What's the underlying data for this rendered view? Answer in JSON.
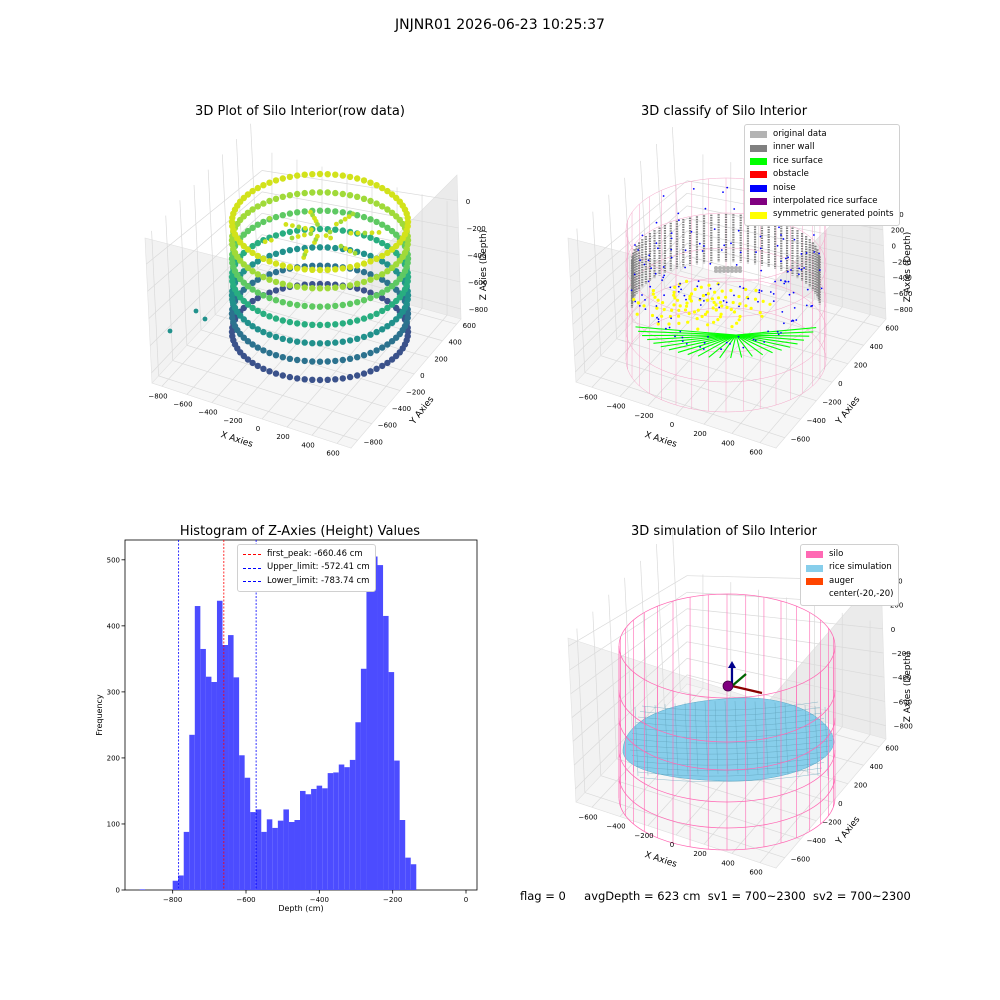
{
  "suptitle": "JNJNR01 2026-06-23 10:25:37",
  "status": {
    "flag": "flag = 0",
    "avg_depth": "avgDepth = 623 cm",
    "sv1": "sv1 = 700~2300",
    "sv2": "sv2 = 700~2300"
  },
  "chart_data": [
    {
      "type": "scatter",
      "title": "3D Plot of Silo Interior(row data)",
      "xlabel": "X Axies",
      "ylabel": "Y Axies",
      "zlabel": "Z Axies (Depth)",
      "x_ticks": [
        "−800",
        "−600",
        "−400",
        "−200",
        "0",
        "200",
        "400",
        "600"
      ],
      "y_ticks": [
        "−800",
        "−600",
        "−400",
        "−200",
        "0",
        "200",
        "400",
        "600"
      ],
      "z_ticks": [
        "0",
        "−200",
        "−400",
        "−600",
        "−800"
      ],
      "xlim": [
        -900,
        650
      ],
      "ylim": [
        -850,
        650
      ],
      "zlim": [
        -900,
        50
      ],
      "colormap": "viridis",
      "colors": {
        "low": "#3b528b",
        "mid": "#21918c",
        "high": "#d2e21b"
      }
    },
    {
      "type": "scatter",
      "title": "3D classify of Silo Interior",
      "xlabel": "X Axies",
      "ylabel": "Y Axies",
      "zlabel": "Z Axies (Depth)",
      "x_ticks": [
        "−600",
        "−400",
        "−200",
        "0",
        "200",
        "400",
        "600"
      ],
      "y_ticks": [
        "−600",
        "−400",
        "−200",
        "0",
        "200",
        "400",
        "600"
      ],
      "z_ticks": [
        "400",
        "200",
        "0",
        "−200",
        "−400",
        "−600",
        "−800"
      ],
      "legend_position": "top-right",
      "legend": [
        {
          "label": "original data",
          "color": "#b3b3b3"
        },
        {
          "label": "inner wall",
          "color": "#808080"
        },
        {
          "label": "rice surface",
          "color": "#00ff00"
        },
        {
          "label": "obstacle",
          "color": "#ff0000"
        },
        {
          "label": "noise",
          "color": "#0000ff"
        },
        {
          "label": "interpolated rice surface",
          "color": "#800080"
        },
        {
          "label": "symmetric generated points",
          "color": "#ffff00"
        }
      ],
      "colors": {
        "wire": "#f4a6c8"
      }
    },
    {
      "type": "bar",
      "title": "Histogram of Z-Axies (Height) Values",
      "xlabel": "Depth (cm)",
      "ylabel": "Frequency",
      "xlim": [
        -930,
        30
      ],
      "ylim": [
        0,
        530
      ],
      "x_ticks": [
        -800,
        -600,
        -400,
        -200,
        0
      ],
      "x_tick_labels": [
        "−800",
        "−600",
        "−400",
        "−200",
        "0"
      ],
      "y_ticks": [
        0,
        100,
        200,
        300,
        400,
        500
      ],
      "bar_color": "#4c4cff",
      "bin_edges_start": -800,
      "bin_width": 15.1,
      "stray_bins": [
        {
          "x0": -890,
          "x1": -875,
          "value": 1
        }
      ],
      "values": [
        14,
        22,
        88,
        235,
        430,
        365,
        323,
        315,
        438,
        371,
        386,
        322,
        204,
        170,
        118,
        122,
        88,
        107,
        94,
        105,
        122,
        103,
        106,
        150,
        145,
        153,
        158,
        154,
        177,
        178,
        190,
        186,
        197,
        254,
        335,
        461,
        505,
        492,
        415,
        330,
        196,
        106,
        49,
        39
      ],
      "lines": [
        {
          "label": "first_peak: -660.46 cm",
          "x": -660.46,
          "color": "#ff0000"
        },
        {
          "label": "Upper_limit: -572.41 cm",
          "x": -572.41,
          "color": "#0000ff"
        },
        {
          "label": "Lower_limit: -783.74 cm",
          "x": -783.74,
          "color": "#0000ff"
        }
      ],
      "legend_position": "top-center"
    },
    {
      "type": "surface",
      "title": "3D simulation of Silo Interior",
      "xlabel": "X Axies",
      "ylabel": "Y Axies",
      "zlabel": "Z Axies (Depth)",
      "x_ticks": [
        "−600",
        "−400",
        "−200",
        "0",
        "200",
        "400",
        "600"
      ],
      "y_ticks": [
        "−600",
        "−400",
        "−200",
        "0",
        "200",
        "400",
        "600"
      ],
      "z_ticks": [
        "400",
        "200",
        "0",
        "−200",
        "−400",
        "−600",
        "−800"
      ],
      "legend_position": "top-right",
      "legend": [
        {
          "label": "silo",
          "color": "#ff69b4"
        },
        {
          "label": "rice simulation",
          "color": "#87ceeb"
        },
        {
          "label": "auger",
          "color": "#ff4500"
        },
        {
          "label": "center(-20,-20)",
          "color": "#ffffff"
        }
      ],
      "center": [
        -20,
        -20
      ]
    }
  ]
}
